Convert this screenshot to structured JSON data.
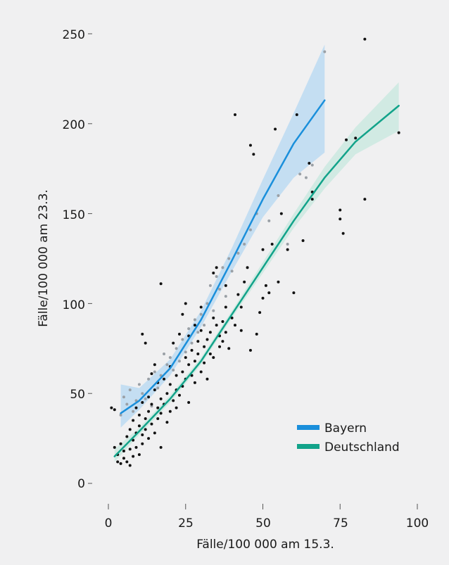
{
  "chart_data": {
    "type": "scatter",
    "title": "",
    "xlabel": "Fälle/100 000 am 15.3.",
    "ylabel": "Fälle/100 000 am 23.3.",
    "xlim": [
      0,
      100
    ],
    "ylim": [
      0,
      250
    ],
    "x_ticks": [
      "0",
      "25",
      "50",
      "75",
      "100"
    ],
    "y_ticks": [
      "0",
      "50",
      "100",
      "150",
      "200",
      "250"
    ],
    "grid": false,
    "legend_position": "bottom-right",
    "series": [
      {
        "name": "Bayern",
        "color": "#1a8fdb",
        "band_color": "#b9d9f2",
        "point_color": "#9aa0a6",
        "fit": [
          [
            4,
            39
          ],
          [
            10,
            46
          ],
          [
            20,
            64
          ],
          [
            30,
            91
          ],
          [
            40,
            124
          ],
          [
            50,
            158
          ],
          [
            60,
            189
          ],
          [
            70,
            213
          ]
        ],
        "band_lower": [
          [
            4,
            31
          ],
          [
            10,
            41
          ],
          [
            20,
            60
          ],
          [
            30,
            87
          ],
          [
            40,
            118
          ],
          [
            50,
            148
          ],
          [
            60,
            170
          ],
          [
            70,
            184
          ]
        ],
        "band_upper": [
          [
            4,
            55
          ],
          [
            10,
            53
          ],
          [
            20,
            69
          ],
          [
            30,
            96
          ],
          [
            40,
            131
          ],
          [
            50,
            169
          ],
          [
            60,
            206
          ],
          [
            70,
            244
          ]
        ],
        "points": [
          [
            4,
            38
          ],
          [
            5,
            48
          ],
          [
            6,
            44
          ],
          [
            7,
            52
          ],
          [
            8,
            40
          ],
          [
            9,
            46
          ],
          [
            10,
            55
          ],
          [
            11,
            50
          ],
          [
            12,
            47
          ],
          [
            13,
            58
          ],
          [
            14,
            43
          ],
          [
            15,
            62
          ],
          [
            16,
            53
          ],
          [
            17,
            60
          ],
          [
            18,
            72
          ],
          [
            19,
            66
          ],
          [
            20,
            70
          ],
          [
            21,
            63
          ],
          [
            22,
            75
          ],
          [
            23,
            68
          ],
          [
            24,
            80
          ],
          [
            25,
            73
          ],
          [
            26,
            86
          ],
          [
            27,
            78
          ],
          [
            28,
            91
          ],
          [
            29,
            84
          ],
          [
            30,
            94
          ],
          [
            31,
            88
          ],
          [
            32,
            100
          ],
          [
            33,
            110
          ],
          [
            34,
            96
          ],
          [
            35,
            115
          ],
          [
            36,
            108
          ],
          [
            37,
            120
          ],
          [
            38,
            104
          ],
          [
            39,
            125
          ],
          [
            40,
            118
          ],
          [
            42,
            128
          ],
          [
            44,
            133
          ],
          [
            46,
            141
          ],
          [
            48,
            150
          ],
          [
            52,
            146
          ],
          [
            55,
            160
          ],
          [
            58,
            133
          ],
          [
            62,
            172
          ],
          [
            64,
            170
          ],
          [
            66,
            177
          ],
          [
            70,
            240
          ]
        ]
      },
      {
        "name": "Deutschland",
        "color": "#12a38a",
        "band_color": "#c9e8e0",
        "point_color": "#111111",
        "fit": [
          [
            2,
            15
          ],
          [
            10,
            29
          ],
          [
            20,
            47
          ],
          [
            30,
            68
          ],
          [
            40,
            94
          ],
          [
            50,
            120
          ],
          [
            60,
            146
          ],
          [
            70,
            170
          ],
          [
            80,
            190
          ],
          [
            94,
            210
          ]
        ],
        "band_lower": [
          [
            2,
            12
          ],
          [
            10,
            27
          ],
          [
            20,
            45
          ],
          [
            30,
            66
          ],
          [
            40,
            92
          ],
          [
            50,
            117
          ],
          [
            60,
            142
          ],
          [
            70,
            164
          ],
          [
            80,
            183
          ],
          [
            94,
            196
          ]
        ],
        "band_upper": [
          [
            2,
            19
          ],
          [
            10,
            31
          ],
          [
            20,
            49
          ],
          [
            30,
            70
          ],
          [
            40,
            96
          ],
          [
            50,
            123
          ],
          [
            60,
            150
          ],
          [
            70,
            176
          ],
          [
            80,
            198
          ],
          [
            94,
            223
          ]
        ],
        "points": [
          [
            1,
            42
          ],
          [
            2,
            41
          ],
          [
            2,
            20
          ],
          [
            3,
            12
          ],
          [
            3,
            16
          ],
          [
            4,
            11
          ],
          [
            4,
            22
          ],
          [
            5,
            14
          ],
          [
            5,
            18
          ],
          [
            6,
            12
          ],
          [
            6,
            26
          ],
          [
            7,
            10
          ],
          [
            7,
            19
          ],
          [
            7,
            30
          ],
          [
            8,
            15
          ],
          [
            8,
            24
          ],
          [
            8,
            35
          ],
          [
            9,
            20
          ],
          [
            9,
            28
          ],
          [
            9,
            42
          ],
          [
            10,
            16
          ],
          [
            10,
            32
          ],
          [
            10,
            38
          ],
          [
            11,
            22
          ],
          [
            11,
            27
          ],
          [
            11,
            45
          ],
          [
            11,
            83
          ],
          [
            12,
            30
          ],
          [
            12,
            36
          ],
          [
            12,
            78
          ],
          [
            13,
            25
          ],
          [
            13,
            40
          ],
          [
            13,
            48
          ],
          [
            14,
            33
          ],
          [
            14,
            44
          ],
          [
            14,
            61
          ],
          [
            15,
            28
          ],
          [
            15,
            52
          ],
          [
            15,
            66
          ],
          [
            16,
            36
          ],
          [
            16,
            42
          ],
          [
            16,
            56
          ],
          [
            17,
            20
          ],
          [
            17,
            39
          ],
          [
            17,
            47
          ],
          [
            17,
            111
          ],
          [
            18,
            44
          ],
          [
            18,
            58
          ],
          [
            19,
            34
          ],
          [
            19,
            50
          ],
          [
            20,
            40
          ],
          [
            20,
            55
          ],
          [
            20,
            65
          ],
          [
            21,
            46
          ],
          [
            21,
            78
          ],
          [
            22,
            42
          ],
          [
            22,
            52
          ],
          [
            22,
            60
          ],
          [
            23,
            49
          ],
          [
            23,
            83
          ],
          [
            24,
            54
          ],
          [
            24,
            62
          ],
          [
            24,
            94
          ],
          [
            25,
            58
          ],
          [
            25,
            70
          ],
          [
            25,
            100
          ],
          [
            26,
            45
          ],
          [
            26,
            66
          ],
          [
            26,
            82
          ],
          [
            27,
            60
          ],
          [
            27,
            74
          ],
          [
            28,
            56
          ],
          [
            28,
            68
          ],
          [
            28,
            88
          ],
          [
            29,
            72
          ],
          [
            29,
            79
          ],
          [
            30,
            62
          ],
          [
            30,
            85
          ],
          [
            30,
            98
          ],
          [
            31,
            76
          ],
          [
            31,
            67
          ],
          [
            32,
            80
          ],
          [
            32,
            58
          ],
          [
            33,
            84
          ],
          [
            33,
            72
          ],
          [
            34,
            70
          ],
          [
            34,
            92
          ],
          [
            34,
            117
          ],
          [
            35,
            88
          ],
          [
            35,
            120
          ],
          [
            36,
            76
          ],
          [
            36,
            82
          ],
          [
            37,
            90
          ],
          [
            37,
            79
          ],
          [
            38,
            98
          ],
          [
            38,
            84
          ],
          [
            38,
            110
          ],
          [
            39,
            75
          ],
          [
            40,
            92
          ],
          [
            41,
            88
          ],
          [
            41,
            205
          ],
          [
            42,
            105
          ],
          [
            43,
            98
          ],
          [
            43,
            85
          ],
          [
            44,
            112
          ],
          [
            45,
            120
          ],
          [
            46,
            74
          ],
          [
            46,
            188
          ],
          [
            47,
            183
          ],
          [
            48,
            83
          ],
          [
            49,
            95
          ],
          [
            50,
            130
          ],
          [
            50,
            103
          ],
          [
            51,
            110
          ],
          [
            52,
            106
          ],
          [
            53,
            133
          ],
          [
            54,
            197
          ],
          [
            55,
            112
          ],
          [
            56,
            150
          ],
          [
            58,
            130
          ],
          [
            60,
            106
          ],
          [
            61,
            205
          ],
          [
            63,
            135
          ],
          [
            65,
            178
          ],
          [
            66,
            162
          ],
          [
            66,
            158
          ],
          [
            75,
            152
          ],
          [
            75,
            147
          ],
          [
            76,
            139
          ],
          [
            77,
            191
          ],
          [
            80,
            192
          ],
          [
            83,
            158
          ],
          [
            83,
            247
          ],
          [
            94,
            195
          ]
        ]
      }
    ]
  }
}
